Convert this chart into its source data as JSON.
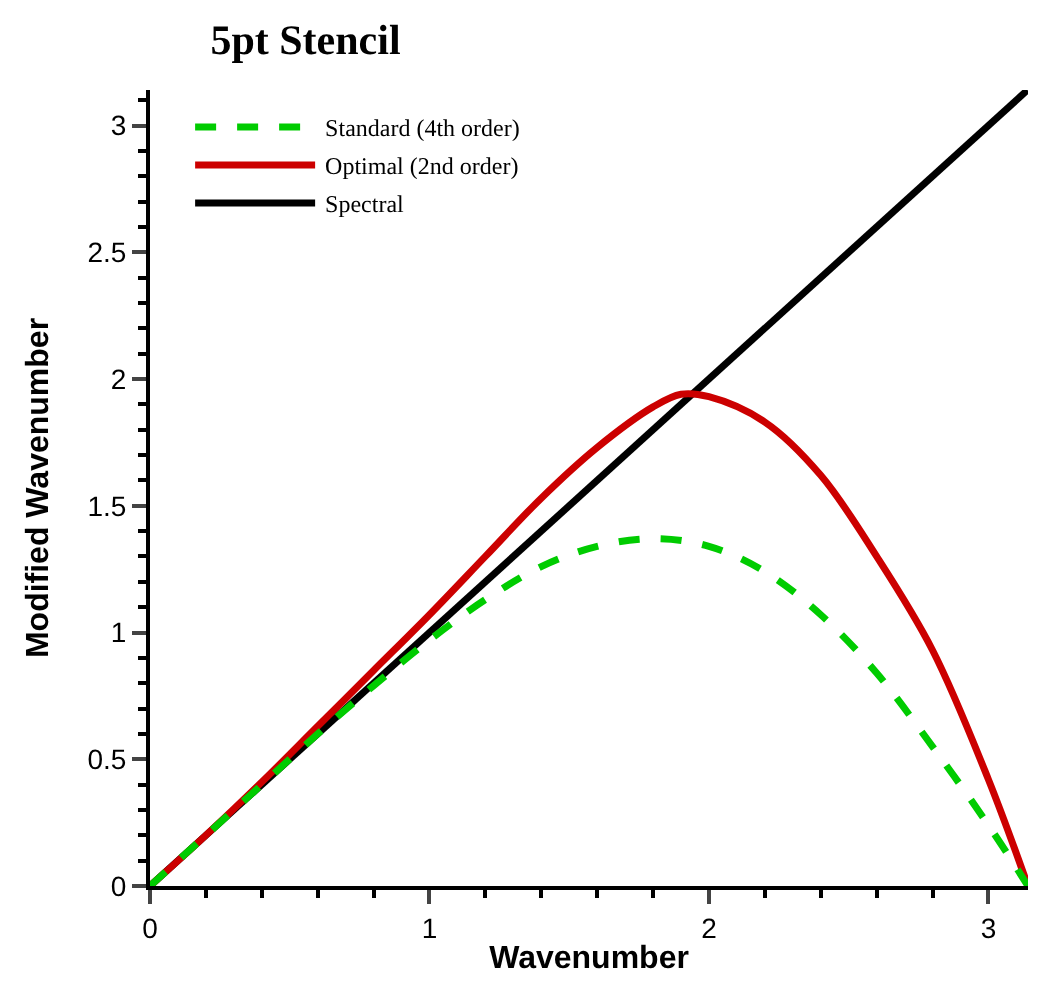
{
  "chart_data": {
    "type": "line",
    "title": "5pt Stencil",
    "xlabel": "Wavenumber",
    "ylabel": "Modified Wavenumber",
    "xlim": [
      0,
      3.1416
    ],
    "ylim": [
      0,
      3.14
    ],
    "xticks": [
      0,
      1,
      2,
      3
    ],
    "yticks": [
      0,
      0.5,
      1,
      1.5,
      2,
      2.5,
      3
    ],
    "legend": "top left",
    "marker": "none",
    "series": [
      {
        "name": "Standard (4th order)",
        "color": "#00cc00",
        "line_style": "dashed",
        "x": [
          0,
          0.2,
          0.4,
          0.6,
          0.8,
          1.0,
          1.2,
          1.4,
          1.6,
          1.8,
          2.0,
          2.2,
          2.4,
          2.6,
          2.8,
          3.0,
          3.1416
        ],
        "values": [
          0,
          0.2,
          0.4,
          0.6,
          0.79,
          0.97,
          1.13,
          1.26,
          1.34,
          1.37,
          1.34,
          1.24,
          1.07,
          0.84,
          0.55,
          0.24,
          0
        ]
      },
      {
        "name": "Optimal (2nd order)",
        "color": "#cc0000",
        "line_style": "solid",
        "x": [
          0,
          0.2,
          0.4,
          0.6,
          0.8,
          1.0,
          1.2,
          1.4,
          1.6,
          1.8,
          1.9,
          2.0,
          2.2,
          2.4,
          2.6,
          2.8,
          3.0,
          3.1416
        ],
        "values": [
          0,
          0.2,
          0.41,
          0.63,
          0.85,
          1.07,
          1.3,
          1.53,
          1.73,
          1.89,
          1.94,
          1.93,
          1.83,
          1.62,
          1.3,
          0.93,
          0.42,
          0
        ]
      },
      {
        "name": "Spectral",
        "color": "#000000",
        "line_style": "solid",
        "x": [
          0,
          3.14
        ],
        "values": [
          0,
          3.14
        ]
      }
    ]
  }
}
